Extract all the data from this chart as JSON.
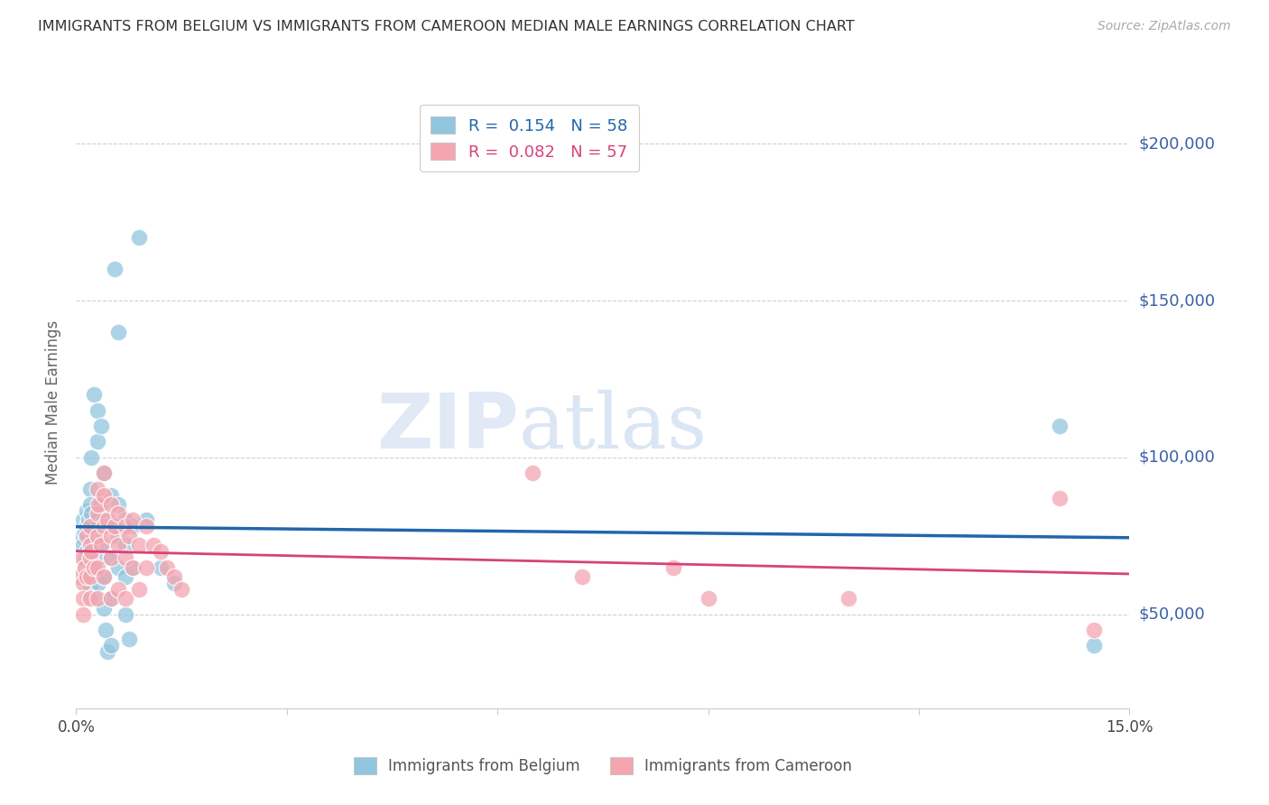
{
  "title": "IMMIGRANTS FROM BELGIUM VS IMMIGRANTS FROM CAMEROON MEDIAN MALE EARNINGS CORRELATION CHART",
  "source": "Source: ZipAtlas.com",
  "ylabel": "Median Male Earnings",
  "xlim": [
    0.0,
    0.15
  ],
  "ylim": [
    20000,
    215000
  ],
  "yticks": [
    50000,
    100000,
    150000,
    200000
  ],
  "ytick_labels": [
    "$50,000",
    "$100,000",
    "$150,000",
    "$200,000"
  ],
  "xtick_vals": [
    0.0,
    0.03,
    0.06,
    0.09,
    0.12,
    0.15
  ],
  "belgium_color": "#92c5de",
  "cameroon_color": "#f4a5b0",
  "belgium_line_color": "#2166ac",
  "cameroon_line_color": "#d6437a",
  "yaxis_label_color": "#3a5fa8",
  "R_belgium": 0.154,
  "N_belgium": 58,
  "R_cameroon": 0.082,
  "N_cameroon": 57,
  "belgium_x": [
    0.0008,
    0.001,
    0.001,
    0.0012,
    0.0012,
    0.0013,
    0.0015,
    0.0015,
    0.0015,
    0.0015,
    0.0018,
    0.002,
    0.002,
    0.002,
    0.002,
    0.002,
    0.0022,
    0.0022,
    0.0025,
    0.0025,
    0.0025,
    0.003,
    0.003,
    0.003,
    0.003,
    0.0032,
    0.0035,
    0.0035,
    0.004,
    0.004,
    0.004,
    0.004,
    0.004,
    0.0042,
    0.0045,
    0.005,
    0.005,
    0.005,
    0.005,
    0.005,
    0.0055,
    0.006,
    0.006,
    0.006,
    0.006,
    0.007,
    0.007,
    0.007,
    0.007,
    0.0075,
    0.008,
    0.008,
    0.009,
    0.01,
    0.012,
    0.014,
    0.14,
    0.145
  ],
  "belgium_y": [
    75000,
    80000,
    72000,
    68000,
    76000,
    65000,
    83000,
    78000,
    70000,
    62000,
    80000,
    90000,
    85000,
    72000,
    65000,
    58000,
    100000,
    82000,
    120000,
    75000,
    55000,
    115000,
    105000,
    80000,
    68000,
    60000,
    110000,
    85000,
    95000,
    80000,
    72000,
    62000,
    52000,
    45000,
    38000,
    88000,
    78000,
    68000,
    55000,
    40000,
    160000,
    140000,
    85000,
    75000,
    65000,
    80000,
    72000,
    62000,
    50000,
    42000,
    78000,
    65000,
    170000,
    80000,
    65000,
    60000,
    110000,
    40000
  ],
  "cameroon_x": [
    0.0005,
    0.0008,
    0.001,
    0.001,
    0.001,
    0.0012,
    0.0015,
    0.0015,
    0.002,
    0.002,
    0.002,
    0.002,
    0.002,
    0.0022,
    0.0025,
    0.003,
    0.003,
    0.003,
    0.003,
    0.003,
    0.0032,
    0.0035,
    0.004,
    0.004,
    0.004,
    0.004,
    0.0045,
    0.005,
    0.005,
    0.005,
    0.005,
    0.0055,
    0.006,
    0.006,
    0.006,
    0.007,
    0.007,
    0.007,
    0.0075,
    0.008,
    0.008,
    0.009,
    0.009,
    0.01,
    0.01,
    0.011,
    0.012,
    0.013,
    0.014,
    0.015,
    0.065,
    0.072,
    0.085,
    0.09,
    0.11,
    0.14,
    0.145
  ],
  "cameroon_y": [
    62000,
    68000,
    60000,
    55000,
    50000,
    65000,
    75000,
    62000,
    78000,
    72000,
    68000,
    62000,
    55000,
    70000,
    65000,
    90000,
    82000,
    75000,
    65000,
    55000,
    85000,
    72000,
    95000,
    88000,
    78000,
    62000,
    80000,
    85000,
    75000,
    68000,
    55000,
    78000,
    82000,
    72000,
    58000,
    78000,
    68000,
    55000,
    75000,
    80000,
    65000,
    72000,
    58000,
    78000,
    65000,
    72000,
    70000,
    65000,
    62000,
    58000,
    95000,
    62000,
    65000,
    55000,
    55000,
    87000,
    45000
  ],
  "watermark_zip": "ZIP",
  "watermark_atlas": "atlas",
  "background_color": "#ffffff",
  "grid_color": "#d0d0d0"
}
